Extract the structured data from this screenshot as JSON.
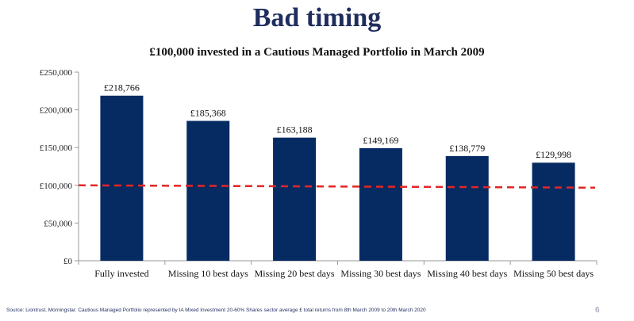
{
  "slide": {
    "title": "Bad timing",
    "source": "Source: Liontrust, Morningstar. Cautious Managed Portfolio represented by IA Mixed Investment 20-60% Shares sector average £ total returns from 8th March 2009 to 20th March 2020",
    "page_number": "6"
  },
  "chart_data": {
    "type": "bar",
    "title": "£100,000 invested in a Cautious Managed Portfolio in March 2009",
    "categories": [
      "Fully invested",
      "Missing 10 best days",
      "Missing 20 best days",
      "Missing 30 best days",
      "Missing 40 best days",
      "Missing 50 best days"
    ],
    "values": [
      218766,
      185368,
      163188,
      149169,
      138779,
      129998
    ],
    "data_labels": [
      "£218,766",
      "£185,368",
      "£163,188",
      "£149,169",
      "£138,779",
      "£129,998"
    ],
    "y_ticks": [
      0,
      50000,
      100000,
      150000,
      200000,
      250000
    ],
    "y_tick_labels": [
      "£0",
      "£50,000",
      "£100,000",
      "£150,000",
      "£200,000",
      "£250,000"
    ],
    "ylim": [
      0,
      250000
    ],
    "reference_line": {
      "value": 100000,
      "style": "dashed",
      "color": "#e32626"
    },
    "bar_color": "#062a62",
    "grid": false,
    "xlabel": "",
    "ylabel": ""
  }
}
